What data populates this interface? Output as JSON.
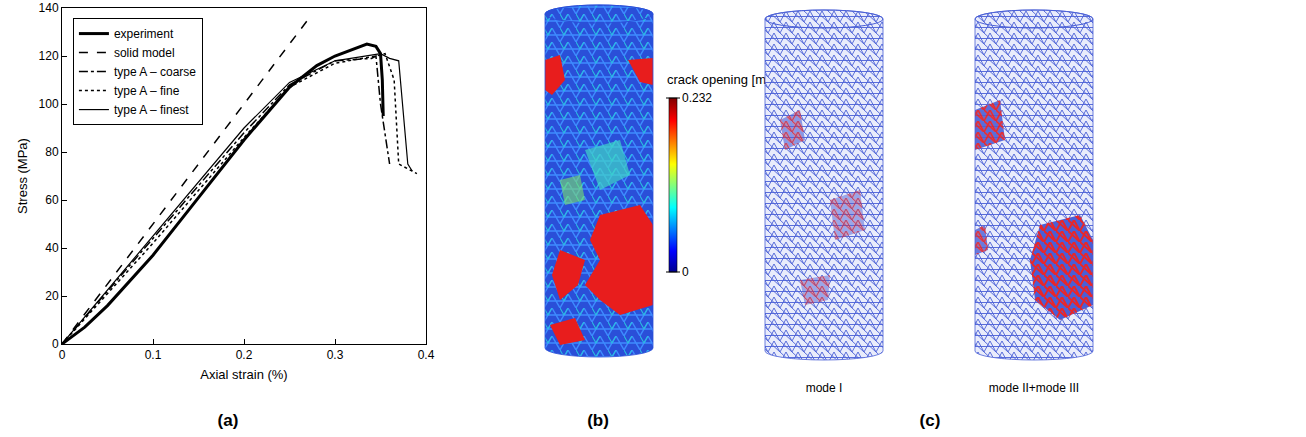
{
  "chart_data": {
    "type": "line",
    "xlabel": "Axial strain (%)",
    "ylabel": "Stress (MPa)",
    "xlim": [
      0,
      0.4
    ],
    "ylim": [
      0,
      140
    ],
    "xticks": [
      0,
      0.1,
      0.2,
      0.3,
      0.4
    ],
    "yticks": [
      0,
      20,
      40,
      60,
      80,
      100,
      120,
      140
    ],
    "grid": false,
    "legend": "upper left",
    "series": [
      {
        "name": "experiment",
        "color": "#000000",
        "line_style": "thick",
        "x": [
          0,
          0.025,
          0.05,
          0.1,
          0.15,
          0.2,
          0.25,
          0.28,
          0.3,
          0.32,
          0.335,
          0.345,
          0.35,
          0.352,
          0.353
        ],
        "values": [
          0,
          7,
          16,
          37,
          61,
          85,
          107,
          116,
          120,
          123,
          125,
          124,
          121,
          110,
          95
        ]
      },
      {
        "name": "solid model",
        "color": "#000000",
        "line_style": "dashed",
        "x": [
          0,
          0.27
        ],
        "values": [
          0,
          135
        ]
      },
      {
        "name": "type A – coarse",
        "color": "#000000",
        "line_style": "dashdot",
        "x": [
          0,
          0.1,
          0.2,
          0.25,
          0.3,
          0.34,
          0.345,
          0.35,
          0.36
        ],
        "values": [
          0,
          44,
          88,
          108,
          118,
          119,
          120,
          100,
          75
        ]
      },
      {
        "name": "type A – fine",
        "color": "#000000",
        "line_style": "dotted",
        "x": [
          0,
          0.1,
          0.2,
          0.25,
          0.3,
          0.345,
          0.355,
          0.365,
          0.37,
          0.38,
          0.39
        ],
        "values": [
          0,
          42,
          86,
          107,
          117,
          120,
          121,
          110,
          75,
          73,
          71
        ]
      },
      {
        "name": "type A – finest",
        "color": "#000000",
        "line_style": "solid",
        "x": [
          0,
          0.1,
          0.2,
          0.25,
          0.3,
          0.35,
          0.36,
          0.37,
          0.38,
          0.385
        ],
        "values": [
          0,
          45,
          90,
          109,
          118,
          121,
          119,
          118,
          75,
          72
        ]
      }
    ]
  },
  "panel_labels": [
    "(a)",
    "(b)",
    "(c)"
  ],
  "panel_b": {
    "colorbar": {
      "title": "crack opening [mm]",
      "range": [
        0,
        0.232
      ],
      "ticks": [
        0,
        0.232
      ]
    }
  },
  "panel_c": {
    "views": [
      "mode I",
      "mode II+mode III"
    ]
  }
}
